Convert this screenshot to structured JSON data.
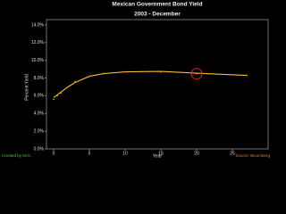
{
  "chart_data": {
    "type": "line",
    "title": "Mexican Government Bond Yield",
    "subtitle": "2003 - December",
    "x_label": "Year",
    "y_label": "Percent Yield",
    "x": [
      0,
      0.5,
      1,
      2,
      3,
      5,
      7,
      10,
      15,
      20,
      27
    ],
    "series": [
      {
        "color": "#f0c030",
        "values": [
          5.8,
          6.1,
          6.4,
          7.0,
          7.5,
          8.2,
          8.5,
          8.7,
          8.75,
          8.55,
          8.3
        ]
      },
      {
        "color": "#ff8c1a",
        "values": [
          5.6,
          6.0,
          6.3,
          7.0,
          7.6,
          8.2,
          8.5,
          8.7,
          8.7,
          8.5,
          8.3
        ],
        "markers": true
      }
    ],
    "highlight": {
      "x": 20,
      "y": 8.5,
      "color": "#e02020"
    },
    "xlim": [
      -1,
      30
    ],
    "ylim": [
      0,
      14.6
    ],
    "xticks": [
      0,
      5,
      10,
      15,
      20,
      25
    ],
    "yticks": [
      {
        "value": 0,
        "label": "0.0%"
      },
      {
        "value": 2,
        "label": "2.0%"
      },
      {
        "value": 4,
        "label": "4.0%"
      },
      {
        "value": 6,
        "label": "6.0%"
      },
      {
        "value": 8,
        "label": "8.0%"
      },
      {
        "value": 10,
        "label": "10.0%"
      },
      {
        "value": 12,
        "label": "12.0%"
      },
      {
        "value": 14,
        "label": "14.0%"
      }
    ],
    "credit": "Created by M.G.",
    "source": "Source: Bloomberg"
  }
}
